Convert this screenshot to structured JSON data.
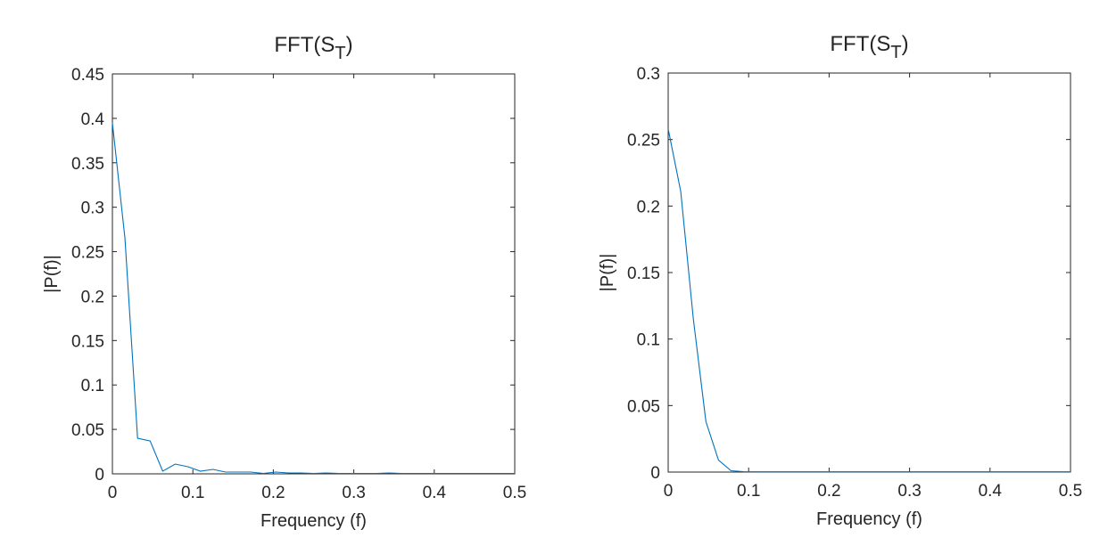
{
  "chart_data": [
    {
      "type": "line",
      "title": "FFT(S",
      "title_subscript": "T",
      "title_suffix": ")",
      "xlabel": "Frequency (f)",
      "ylabel": "|P(f)|",
      "xlim": [
        0,
        0.5
      ],
      "ylim": [
        0,
        0.45
      ],
      "xticks": [
        "0",
        "0.1",
        "0.2",
        "0.3",
        "0.4",
        "0.5"
      ],
      "yticks": [
        "0",
        "0.05",
        "0.1",
        "0.15",
        "0.2",
        "0.25",
        "0.3",
        "0.35",
        "0.4",
        "0.45"
      ],
      "grid": false,
      "line_color": "#0072BD",
      "series": [
        {
          "x": [
            0,
            0.0156,
            0.0313,
            0.0469,
            0.0625,
            0.0781,
            0.0938,
            0.1094,
            0.125,
            0.1406,
            0.1563,
            0.1719,
            0.1875,
            0.2031,
            0.2188,
            0.2344,
            0.25,
            0.2656,
            0.2813,
            0.2969,
            0.3125,
            0.3281,
            0.3438,
            0.3594,
            0.375,
            0.3906,
            0.4063,
            0.4219,
            0.4375,
            0.4531,
            0.4688,
            0.4844,
            0.5
          ],
          "values": [
            0.395,
            0.265,
            0.04,
            0.037,
            0.003,
            0.011,
            0.008,
            0.003,
            0.005,
            0.002,
            0.002,
            0.002,
            0.0005,
            0.002,
            0.001,
            0.001,
            0.0005,
            0.001,
            0.0005,
            0.0005,
            0.0005,
            0.0005,
            0.001,
            0.0005,
            0.0005,
            0.0005,
            0.0005,
            0.0005,
            0.0005,
            0.0005,
            0.0005,
            0.0005,
            0.0005
          ]
        }
      ]
    },
    {
      "type": "line",
      "title": "FFT(S",
      "title_subscript": "T",
      "title_suffix": ")",
      "xlabel": "Frequency (f)",
      "ylabel": "|P(f)|",
      "xlim": [
        0,
        0.5
      ],
      "ylim": [
        0,
        0.3
      ],
      "xticks": [
        "0",
        "0.1",
        "0.2",
        "0.3",
        "0.4",
        "0.5"
      ],
      "yticks": [
        "0",
        "0.05",
        "0.1",
        "0.15",
        "0.2",
        "0.25",
        "0.3"
      ],
      "grid": false,
      "line_color": "#0072BD",
      "series": [
        {
          "x": [
            0,
            0.0156,
            0.0313,
            0.0469,
            0.0625,
            0.0781,
            0.0938,
            0.1094,
            0.125,
            0.1406,
            0.1563,
            0.1719,
            0.1875,
            0.2031,
            0.2188,
            0.2344,
            0.25,
            0.2656,
            0.2813,
            0.2969,
            0.3125,
            0.3281,
            0.3438,
            0.3594,
            0.375,
            0.3906,
            0.4063,
            0.4219,
            0.4375,
            0.4531,
            0.4688,
            0.4844,
            0.5
          ],
          "values": [
            0.258,
            0.211,
            0.115,
            0.038,
            0.009,
            0.001,
            0.0003,
            0.0002,
            0.0002,
            0.0002,
            0.0002,
            0.0002,
            0.0002,
            0.0002,
            0.0002,
            0.0002,
            0.0002,
            0.0002,
            0.0002,
            0.0002,
            0.0002,
            0.0002,
            0.0002,
            0.0002,
            0.0002,
            0.0002,
            0.0002,
            0.0002,
            0.0002,
            0.0002,
            0.0002,
            0.0002,
            0.0002
          ]
        }
      ]
    }
  ]
}
